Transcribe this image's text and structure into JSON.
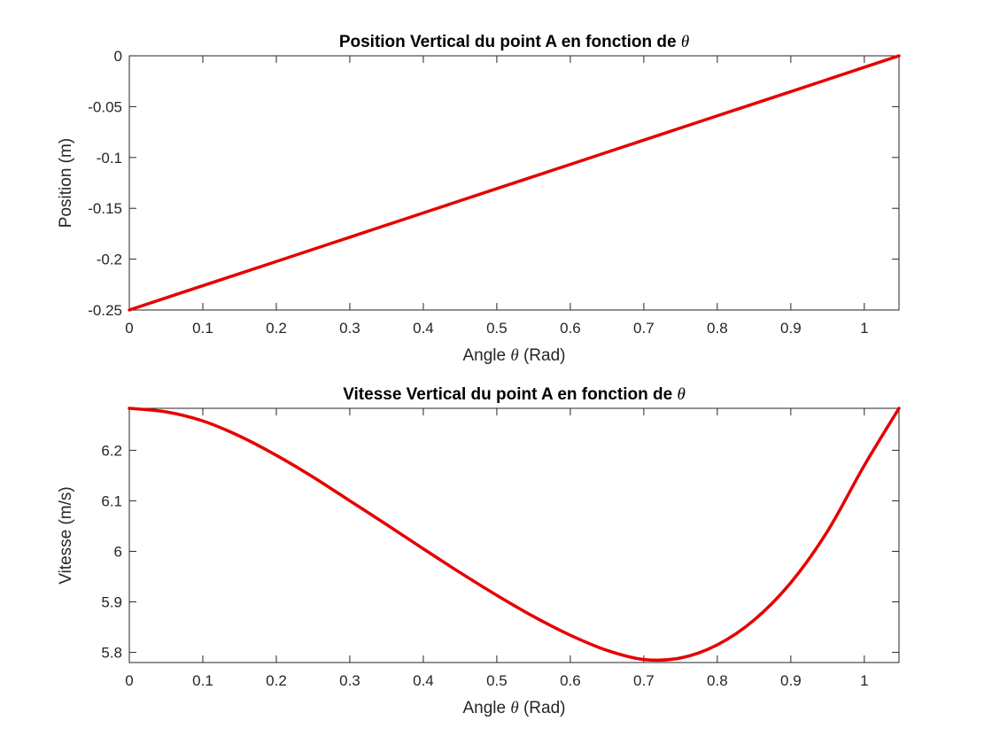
{
  "chart_data": [
    {
      "type": "line",
      "title": {
        "prefix": "Position Vertical du point A en fonction de ",
        "symbol": "θ"
      },
      "xlabel": {
        "prefix": "Angle ",
        "symbol": "θ",
        "suffix": " (Rad)"
      },
      "ylabel": "Position (m)",
      "xlim": [
        0,
        1.0472
      ],
      "ylim": [
        -0.25,
        0
      ],
      "x_ticks": [
        0,
        0.1,
        0.2,
        0.3,
        0.4,
        0.5,
        0.6,
        0.7,
        0.8,
        0.9,
        1
      ],
      "x_tick_labels": [
        "0",
        "0.1",
        "0.2",
        "0.3",
        "0.4",
        "0.5",
        "0.6",
        "0.7",
        "0.8",
        "0.9",
        "1"
      ],
      "y_ticks": [
        0,
        -0.05,
        -0.1,
        -0.15,
        -0.2,
        -0.25
      ],
      "y_tick_labels": [
        "0",
        "-0.05",
        "-0.1",
        "-0.15",
        "-0.2",
        "-0.25"
      ],
      "grid": false,
      "line_color": "#e60000",
      "series": [
        {
          "x": [
            0,
            0.1,
            0.2,
            0.3,
            0.4,
            0.5,
            0.6,
            0.7,
            0.8,
            0.9,
            1.0,
            1.0472
          ],
          "y": [
            -0.25,
            -0.2261,
            -0.2023,
            -0.1784,
            -0.1545,
            -0.1306,
            -0.1068,
            -0.0829,
            -0.059,
            -0.0352,
            -0.0113,
            0
          ]
        }
      ]
    },
    {
      "type": "line",
      "title": {
        "prefix": "Vitesse Vertical du point A en fonction de ",
        "symbol": "θ"
      },
      "xlabel": {
        "prefix": "Angle ",
        "symbol": "θ",
        "suffix": " (Rad)"
      },
      "ylabel": "Vitesse (m/s)",
      "xlim": [
        0,
        1.0472
      ],
      "ylim": [
        5.78,
        6.283
      ],
      "x_ticks": [
        0,
        0.1,
        0.2,
        0.3,
        0.4,
        0.5,
        0.6,
        0.7,
        0.8,
        0.9,
        1
      ],
      "x_tick_labels": [
        "0",
        "0.1",
        "0.2",
        "0.3",
        "0.4",
        "0.5",
        "0.6",
        "0.7",
        "0.8",
        "0.9",
        "1"
      ],
      "y_ticks": [
        5.8,
        5.9,
        6,
        6.1,
        6.2
      ],
      "y_tick_labels": [
        "5.8",
        "5.9",
        "6",
        "6.1",
        "6.2"
      ],
      "grid": false,
      "line_color": "#e60000",
      "series": [
        {
          "x": [
            0,
            0.05,
            0.1,
            0.15,
            0.2,
            0.25,
            0.3,
            0.35,
            0.4,
            0.45,
            0.5,
            0.55,
            0.6,
            0.65,
            0.7,
            0.75,
            0.8,
            0.85,
            0.9,
            0.95,
            1.0,
            1.0472
          ],
          "y": [
            6.283,
            6.276,
            6.258,
            6.228,
            6.19,
            6.147,
            6.1,
            6.053,
            6.005,
            5.958,
            5.913,
            5.871,
            5.834,
            5.804,
            5.786,
            5.789,
            5.815,
            5.864,
            5.938,
            6.04,
            6.17,
            6.283
          ]
        }
      ]
    }
  ]
}
